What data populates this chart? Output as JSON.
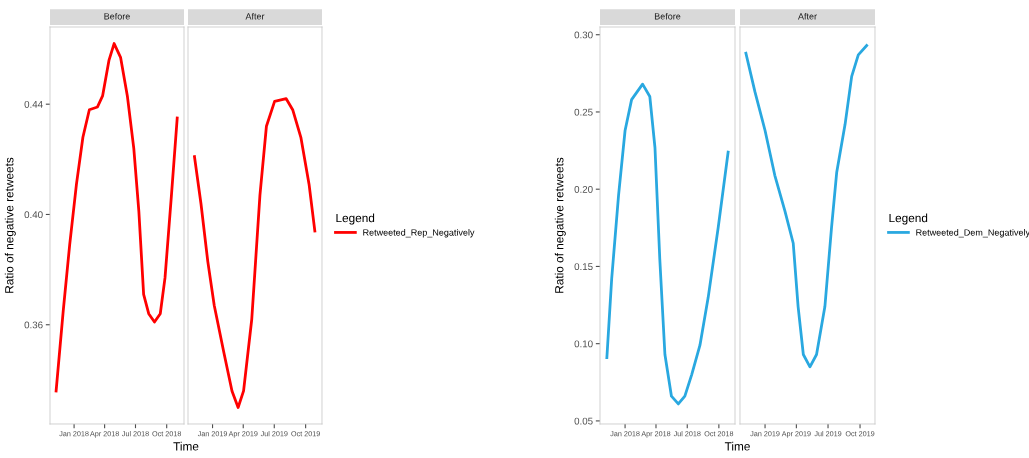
{
  "chart_data": [
    {
      "type": "line",
      "title": "Before",
      "ylabel": "Ratio of negative retweets",
      "xlabel": "Time",
      "x": [
        "2017-11-09",
        "2017-11-30",
        "2017-12-19",
        "2018-01-08",
        "2018-01-27",
        "2018-02-15",
        "2018-03-11",
        "2018-03-26",
        "2018-04-14",
        "2018-04-29",
        "2018-05-18",
        "2018-06-07",
        "2018-06-26",
        "2018-07-11",
        "2018-07-25",
        "2018-08-09",
        "2018-08-26",
        "2018-09-12",
        "2018-09-26",
        "2018-10-15",
        "2018-11-01"
      ],
      "series": [
        {
          "color": "#ff0000",
          "values": [
            0.336,
            0.365,
            0.389,
            0.411,
            0.428,
            0.438,
            0.439,
            0.443,
            0.456,
            0.462,
            0.457,
            0.443,
            0.424,
            0.401,
            0.371,
            0.364,
            0.361,
            0.364,
            0.377,
            0.407,
            0.435
          ]
        }
      ],
      "xlim": [
        "2017-10-22",
        "2018-11-21"
      ],
      "xticks": [
        {
          "value": "2018-01-01",
          "label": "Jan 2018"
        },
        {
          "value": "2018-04-01",
          "label": "Apr 2018"
        },
        {
          "value": "2018-07-01",
          "label": "Jul 2018"
        },
        {
          "value": "2018-10-01",
          "label": "Oct 2018"
        }
      ],
      "ylim": [
        0.324,
        0.468
      ],
      "yticks": [
        {
          "value": 0.36,
          "label": "0.36"
        },
        {
          "value": 0.4,
          "label": "0.40"
        },
        {
          "value": 0.44,
          "label": "0.44"
        }
      ]
    },
    {
      "type": "line",
      "title": "After",
      "legend": "right",
      "legend_title": "Legend",
      "tick_labels": "x",
      "x": [
        "2018-11-09",
        "2018-11-28",
        "2018-12-18",
        "2019-01-06",
        "2019-02-03",
        "2019-02-27",
        "2019-03-17",
        "2019-04-02",
        "2019-04-26",
        "2019-05-20",
        "2019-06-08",
        "2019-07-02",
        "2019-08-05",
        "2019-08-24",
        "2019-09-17",
        "2019-10-11",
        "2019-10-28"
      ],
      "series": [
        {
          "name": "Retweeted_Rep_Negatively",
          "color": "#ff0000",
          "values": [
            0.421,
            0.404,
            0.383,
            0.367,
            0.35,
            0.336,
            0.33,
            0.336,
            0.362,
            0.407,
            0.432,
            0.441,
            0.442,
            0.438,
            0.428,
            0.411,
            0.394
          ]
        }
      ],
      "xlim": [
        "2018-10-21",
        "2019-11-18"
      ],
      "xticks": [
        {
          "value": "2019-01-01",
          "label": "Jan 2019"
        },
        {
          "value": "2019-04-01",
          "label": "Apr 2019"
        },
        {
          "value": "2019-07-01",
          "label": "Jul 2019"
        },
        {
          "value": "2019-10-01",
          "label": "Oct 2019"
        }
      ],
      "ylim": [
        0.324,
        0.468
      ]
    },
    {
      "type": "line",
      "title": "Before",
      "ylabel": "Ratio of negative retweets",
      "xlabel": "Time",
      "x": [
        "2017-11-09",
        "2017-11-23",
        "2017-12-13",
        "2018-01-01",
        "2018-01-20",
        "2018-02-21",
        "2018-03-14",
        "2018-03-29",
        "2018-04-12",
        "2018-04-27",
        "2018-05-16",
        "2018-06-05",
        "2018-06-24",
        "2018-07-14",
        "2018-08-07",
        "2018-08-31",
        "2018-09-29",
        "2018-10-28"
      ],
      "series": [
        {
          "color": "#29a8e0",
          "values": [
            0.091,
            0.142,
            0.196,
            0.238,
            0.258,
            0.268,
            0.26,
            0.227,
            0.155,
            0.093,
            0.066,
            0.061,
            0.066,
            0.08,
            0.099,
            0.13,
            0.175,
            0.224
          ]
        }
      ],
      "xlim": [
        "2017-10-20",
        "2018-11-17"
      ],
      "xticks": [
        {
          "value": "2018-01-01",
          "label": "Jan 2018"
        },
        {
          "value": "2018-04-01",
          "label": "Apr 2018"
        },
        {
          "value": "2018-07-01",
          "label": "Jul 2018"
        },
        {
          "value": "2018-10-01",
          "label": "Oct 2018"
        }
      ],
      "ylim": [
        0.048,
        0.305
      ],
      "yticks": [
        {
          "value": 0.05,
          "label": "0.05"
        },
        {
          "value": 0.1,
          "label": "0.10"
        },
        {
          "value": 0.15,
          "label": "0.15"
        },
        {
          "value": 0.2,
          "label": "0.20"
        },
        {
          "value": 0.25,
          "label": "0.25"
        },
        {
          "value": 0.3,
          "label": "0.30"
        }
      ]
    },
    {
      "type": "line",
      "title": "After",
      "legend": "right",
      "legend_title": "Legend",
      "tick_labels": "x",
      "x": [
        "2018-11-07",
        "2018-12-03",
        "2019-01-01",
        "2019-01-29",
        "2019-02-27",
        "2019-03-23",
        "2019-04-06",
        "2019-04-21",
        "2019-05-10",
        "2019-05-29",
        "2019-06-22",
        "2019-07-11",
        "2019-07-26",
        "2019-08-19",
        "2019-09-07",
        "2019-09-26",
        "2019-10-20"
      ],
      "series": [
        {
          "name": "Retweeted_Dem_Negatively",
          "color": "#29a8e0",
          "values": [
            0.288,
            0.263,
            0.238,
            0.209,
            0.186,
            0.165,
            0.124,
            0.093,
            0.085,
            0.093,
            0.124,
            0.175,
            0.211,
            0.242,
            0.273,
            0.287,
            0.293
          ]
        }
      ],
      "xlim": [
        "2018-10-21",
        "2019-11-13"
      ],
      "xticks": [
        {
          "value": "2019-01-01",
          "label": "Jan 2019"
        },
        {
          "value": "2019-04-01",
          "label": "Apr 2019"
        },
        {
          "value": "2019-07-01",
          "label": "Jul 2019"
        },
        {
          "value": "2019-10-01",
          "label": "Oct 2019"
        }
      ],
      "ylim": [
        0.048,
        0.305
      ]
    }
  ]
}
